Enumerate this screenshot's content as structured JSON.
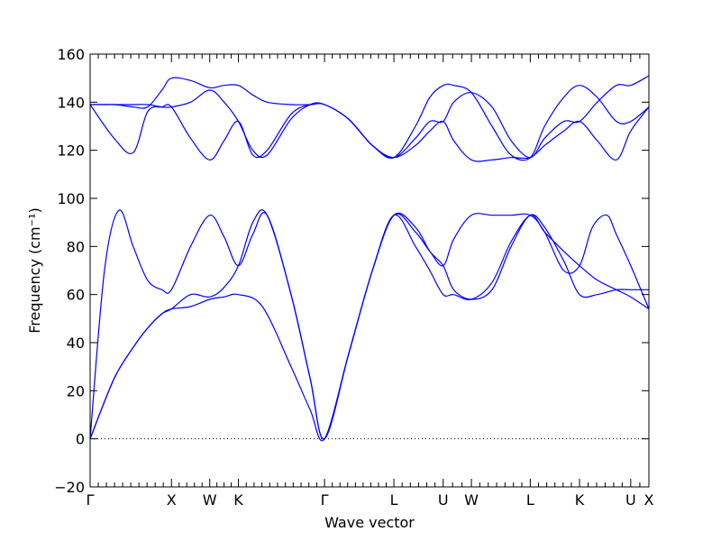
{
  "chart_data": {
    "type": "line",
    "xlabel": "Wave vector",
    "ylabel": "Frequency (cm⁻¹)",
    "ylim": [
      -20,
      160
    ],
    "yticks": [
      -20,
      0,
      20,
      40,
      60,
      80,
      100,
      120,
      140,
      160
    ],
    "xlim": [
      0,
      11.68
    ],
    "high_symmetry_points": [
      {
        "label": "Γ",
        "x": 0
      },
      {
        "label": "X",
        "x": 1.7
      },
      {
        "label": "W",
        "x": 2.5
      },
      {
        "label": "K",
        "x": 3.1
      },
      {
        "label": "Γ",
        "x": 4.9
      },
      {
        "label": "L",
        "x": 6.35
      },
      {
        "label": "U",
        "x": 7.38
      },
      {
        "label": "W",
        "x": 7.97
      },
      {
        "label": "L",
        "x": 9.2
      },
      {
        "label": "K",
        "x": 10.23
      },
      {
        "label": "U",
        "x": 11.3
      },
      {
        "label": "X",
        "x": 11.68
      }
    ],
    "zero_line": 0,
    "grid": false,
    "series_color": "#0000ff",
    "series": [
      {
        "x": [
          0,
          0.5,
          0.9,
          1.2,
          1.5,
          1.7,
          2.1,
          2.5,
          2.8,
          3.1,
          3.6,
          4.2,
          4.6,
          4.9,
          5.4,
          5.9,
          6.35,
          6.8,
          7.1,
          7.38,
          7.6,
          7.97,
          8.4,
          8.8,
          9.2,
          9.5,
          9.9,
          10.23,
          10.6,
          11.0,
          11.3,
          11.68
        ],
        "y": [
          0,
          25,
          38,
          46,
          52,
          54,
          55,
          58,
          59,
          60,
          55,
          30,
          12,
          0,
          35,
          70,
          93,
          80,
          70,
          60,
          60,
          58,
          65,
          82,
          93,
          88,
          74,
          60,
          60,
          62,
          62,
          62
        ]
      },
      {
        "x": [
          0,
          0.5,
          0.9,
          1.2,
          1.5,
          1.7,
          2.1,
          2.5,
          2.8,
          3.1,
          3.4,
          3.7,
          4.2,
          4.6,
          4.9,
          5.4,
          5.9,
          6.35,
          6.8,
          7.1,
          7.38,
          7.6,
          7.97,
          8.4,
          8.8,
          9.2,
          9.5,
          9.9,
          10.23,
          10.6,
          11.0,
          11.3,
          11.68
        ],
        "y": [
          0,
          25,
          38,
          46,
          52,
          54,
          60,
          59,
          63,
          72,
          90,
          93,
          60,
          25,
          0,
          35,
          70,
          93,
          88,
          78,
          72,
          62,
          58,
          62,
          80,
          93,
          86,
          78,
          72,
          66,
          62,
          59,
          54
        ]
      },
      {
        "x": [
          0,
          0.3,
          0.6,
          0.9,
          1.2,
          1.5,
          1.7,
          2.1,
          2.5,
          2.8,
          3.1,
          3.4,
          3.7,
          4.2,
          4.6,
          4.9,
          5.4,
          5.9,
          6.35,
          6.8,
          7.1,
          7.38,
          7.6,
          7.97,
          8.4,
          8.8,
          9.2,
          9.5,
          9.9,
          10.23,
          10.5,
          10.8,
          11.0,
          11.3,
          11.68
        ],
        "y": [
          0,
          70,
          95,
          80,
          66,
          62,
          62,
          80,
          93,
          84,
          72,
          85,
          93,
          60,
          25,
          0,
          35,
          70,
          93,
          86,
          78,
          72,
          83,
          93,
          93,
          93,
          93,
          86,
          70,
          72,
          88,
          93,
          85,
          72,
          54
        ]
      },
      {
        "x": [
          0,
          0.5,
          0.9,
          1.2,
          1.5,
          1.7,
          2.1,
          2.5,
          2.8,
          3.1,
          3.4,
          3.7,
          4.2,
          4.6,
          4.9,
          5.4,
          5.9,
          6.35,
          6.8,
          7.1,
          7.38,
          7.6,
          7.97,
          8.4,
          8.8,
          9.2,
          9.5,
          9.9,
          10.23,
          10.6,
          11.0,
          11.3,
          11.68
        ],
        "y": [
          139,
          125,
          119,
          136,
          138,
          138,
          125,
          116,
          124,
          132,
          118,
          120,
          135,
          139,
          139,
          133,
          122,
          117,
          122,
          128,
          132,
          124,
          116,
          116,
          117,
          117,
          122,
          128,
          132,
          124,
          116,
          128,
          138
        ]
      },
      {
        "x": [
          0,
          0.5,
          0.9,
          1.2,
          1.5,
          1.7,
          2.1,
          2.5,
          2.8,
          3.1,
          3.4,
          3.7,
          4.2,
          4.6,
          4.9,
          5.4,
          5.9,
          6.35,
          6.8,
          7.1,
          7.38,
          7.6,
          7.97,
          8.4,
          8.8,
          9.2,
          9.5,
          9.9,
          10.23,
          10.6,
          11.0,
          11.3,
          11.68
        ],
        "y": [
          139,
          139,
          139,
          139,
          138,
          138,
          140,
          145,
          140,
          132,
          120,
          118,
          133,
          139,
          139,
          133,
          122,
          117,
          130,
          142,
          147,
          147,
          144,
          130,
          118,
          117,
          130,
          142,
          147,
          142,
          132,
          132,
          138
        ]
      },
      {
        "x": [
          0,
          0.5,
          0.9,
          1.2,
          1.5,
          1.7,
          2.1,
          2.5,
          2.8,
          3.1,
          3.4,
          3.7,
          4.2,
          4.6,
          4.9,
          5.4,
          5.9,
          6.35,
          6.8,
          7.1,
          7.38,
          7.6,
          7.97,
          8.4,
          8.8,
          9.2,
          9.5,
          9.9,
          10.23,
          10.6,
          11.0,
          11.3,
          11.68
        ],
        "y": [
          139,
          139,
          138,
          138,
          145,
          150,
          149,
          146,
          147,
          147,
          143,
          140,
          139,
          139,
          139,
          133,
          122,
          117,
          125,
          132,
          132,
          140,
          144,
          138,
          124,
          117,
          125,
          132,
          132,
          140,
          147,
          147,
          151
        ]
      }
    ]
  }
}
